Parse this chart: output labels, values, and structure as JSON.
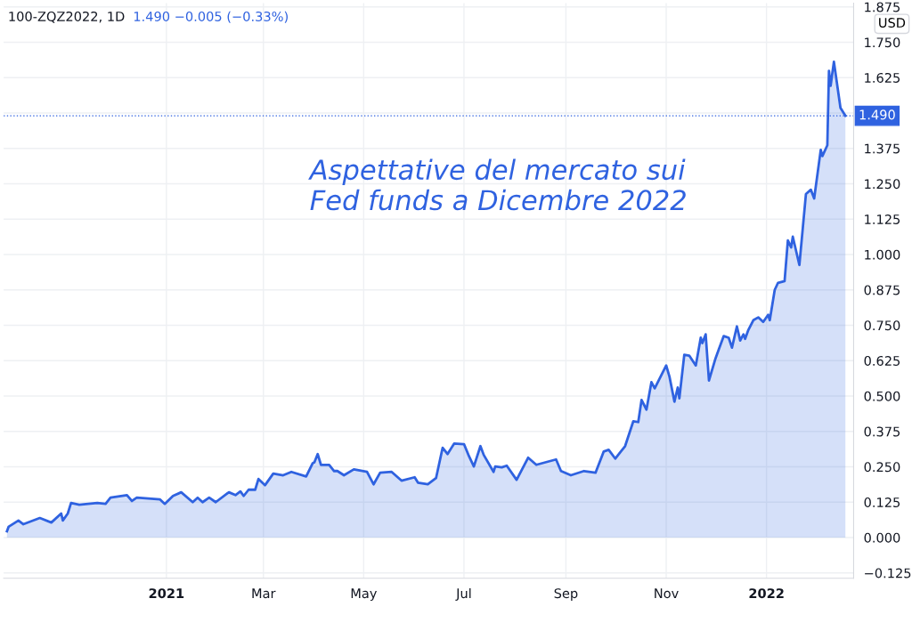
{
  "chart_data": {
    "type": "area",
    "title": "100-ZQZ2022, 1D",
    "subtitle": "1.490 −0.005 (−0.33%)",
    "ylabel": "USD",
    "annotations": [
      "Aspettative del mercato sui\nFed funds a Dicembre 2022"
    ],
    "x": [
      "2020-09-26",
      "2020-09-27",
      "2020-10-03",
      "2020-10-06",
      "2020-10-16",
      "2020-10-23",
      "2020-10-29",
      "2020-10-30",
      "2020-11-02",
      "2020-11-04",
      "2020-11-09",
      "2020-11-20",
      "2020-11-25",
      "2020-11-28",
      "2020-12-08",
      "2020-12-11",
      "2020-12-14",
      "2020-12-28",
      "2020-12-31",
      "2021-01-05",
      "2021-01-10",
      "2021-01-17",
      "2021-01-20",
      "2021-01-23",
      "2021-01-27",
      "2021-01-31",
      "2021-02-08",
      "2021-02-12",
      "2021-02-15",
      "2021-02-17",
      "2021-02-20",
      "2021-02-24",
      "2021-02-26",
      "2021-03-02",
      "2021-03-07",
      "2021-03-13",
      "2021-03-18",
      "2021-03-27",
      "2021-03-31",
      "2021-04-01",
      "2021-04-03",
      "2021-04-05",
      "2021-04-10",
      "2021-04-13",
      "2021-04-15",
      "2021-04-19",
      "2021-04-25",
      "2021-05-03",
      "2021-05-07",
      "2021-05-11",
      "2021-05-18",
      "2021-05-24",
      "2021-06-01",
      "2021-06-03",
      "2021-06-09",
      "2021-06-14",
      "2021-06-18",
      "2021-06-21",
      "2021-06-25",
      "2021-07-01",
      "2021-07-04",
      "2021-07-07",
      "2021-07-11",
      "2021-07-13",
      "2021-07-19",
      "2021-07-20",
      "2021-07-24",
      "2021-07-27",
      "2021-08-02",
      "2021-08-09",
      "2021-08-14",
      "2021-08-26",
      "2021-08-29",
      "2021-09-04",
      "2021-09-12",
      "2021-09-19",
      "2021-09-24",
      "2021-09-27",
      "2021-10-01",
      "2021-10-07",
      "2021-10-12",
      "2021-10-15",
      "2021-10-17",
      "2021-10-20",
      "2021-10-23",
      "2021-10-25",
      "2021-11-01",
      "2021-11-03",
      "2021-11-06",
      "2021-11-08",
      "2021-11-09",
      "2021-11-12",
      "2021-11-15",
      "2021-11-19",
      "2021-11-22",
      "2021-11-23",
      "2021-11-25",
      "2021-11-27",
      "2021-12-01",
      "2021-12-03",
      "2021-12-06",
      "2021-12-09",
      "2021-12-11",
      "2021-12-14",
      "2021-12-16",
      "2021-12-18",
      "2021-12-19",
      "2021-12-21",
      "2021-12-24",
      "2021-12-27",
      "2021-12-30",
      "2022-01-02",
      "2022-01-03",
      "2022-01-06",
      "2022-01-08",
      "2022-01-12",
      "2022-01-14",
      "2022-01-16",
      "2022-01-17",
      "2022-01-21",
      "2022-01-25",
      "2022-01-28",
      "2022-01-30",
      "2022-02-03",
      "2022-02-04",
      "2022-02-07",
      "2022-02-08",
      "2022-02-09",
      "2022-02-11",
      "2022-02-15",
      "2022-02-18"
    ],
    "series": [
      {
        "color": "#2f62e0",
        "values": [
          0.022,
          0.038,
          0.06,
          0.047,
          0.069,
          0.053,
          0.085,
          0.06,
          0.085,
          0.122,
          0.116,
          0.122,
          0.119,
          0.141,
          0.15,
          0.129,
          0.141,
          0.135,
          0.119,
          0.147,
          0.16,
          0.125,
          0.141,
          0.125,
          0.141,
          0.125,
          0.16,
          0.15,
          0.163,
          0.147,
          0.169,
          0.169,
          0.207,
          0.185,
          0.226,
          0.22,
          0.232,
          0.216,
          0.263,
          0.266,
          0.295,
          0.257,
          0.257,
          0.235,
          0.235,
          0.22,
          0.241,
          0.232,
          0.188,
          0.229,
          0.232,
          0.201,
          0.213,
          0.194,
          0.188,
          0.21,
          0.317,
          0.295,
          0.332,
          0.33,
          0.288,
          0.251,
          0.323,
          0.292,
          0.232,
          0.251,
          0.248,
          0.254,
          0.204,
          0.282,
          0.257,
          0.276,
          0.235,
          0.22,
          0.235,
          0.229,
          0.304,
          0.31,
          0.279,
          0.323,
          0.411,
          0.408,
          0.486,
          0.452,
          0.549,
          0.527,
          0.608,
          0.568,
          0.48,
          0.53,
          0.492,
          0.646,
          0.643,
          0.608,
          0.706,
          0.687,
          0.718,
          0.555,
          0.633,
          0.665,
          0.712,
          0.706,
          0.671,
          0.746,
          0.696,
          0.718,
          0.702,
          0.734,
          0.768,
          0.778,
          0.762,
          0.787,
          0.768,
          0.875,
          0.9,
          0.906,
          1.05,
          1.025,
          1.063,
          0.963,
          1.214,
          1.229,
          1.198,
          1.37,
          1.348,
          1.386,
          1.649,
          1.596,
          1.681,
          1.518,
          1.49
        ]
      }
    ],
    "xlim": [
      "2020-09-24",
      "2022-02-23"
    ],
    "xticks": [
      {
        "value": "2021-01-01",
        "label": "2021"
      },
      {
        "value": "2021-03-01",
        "label": "Mar"
      },
      {
        "value": "2021-05-01",
        "label": "May"
      },
      {
        "value": "2021-07-01",
        "label": "Jul"
      },
      {
        "value": "2021-09-01",
        "label": "Sep"
      },
      {
        "value": "2021-11-01",
        "label": "Nov"
      },
      {
        "value": "2022-01-01",
        "label": "2022"
      }
    ],
    "ylim": [
      -0.144,
      1.888
    ],
    "yticks": [
      {
        "value": -0.125,
        "label": "−0.125"
      },
      {
        "value": 0,
        "label": "0.000"
      },
      {
        "value": 0.125,
        "label": "0.125"
      },
      {
        "value": 0.25,
        "label": "0.250"
      },
      {
        "value": 0.375,
        "label": "0.375"
      },
      {
        "value": 0.5,
        "label": "0.500"
      },
      {
        "value": 0.625,
        "label": "0.625"
      },
      {
        "value": 0.75,
        "label": "0.750"
      },
      {
        "value": 0.875,
        "label": "0.875"
      },
      {
        "value": 1,
        "label": "1.000"
      },
      {
        "value": 1.125,
        "label": "1.125"
      },
      {
        "value": 1.25,
        "label": "1.250"
      },
      {
        "value": 1.375,
        "label": "1.375"
      },
      {
        "value": 1.5,
        "label": null
      },
      {
        "value": 1.625,
        "label": "1.625"
      },
      {
        "value": 1.75,
        "label": "1.750"
      },
      {
        "value": 1.875,
        "label": "1.875"
      }
    ],
    "ref_lines": [
      {
        "axis": "y",
        "value": 1.49,
        "label": "1.490",
        "color": "#2f62e0",
        "line_style": "dotted"
      }
    ],
    "grid": true,
    "line_style": "solid",
    "marker": "none"
  }
}
